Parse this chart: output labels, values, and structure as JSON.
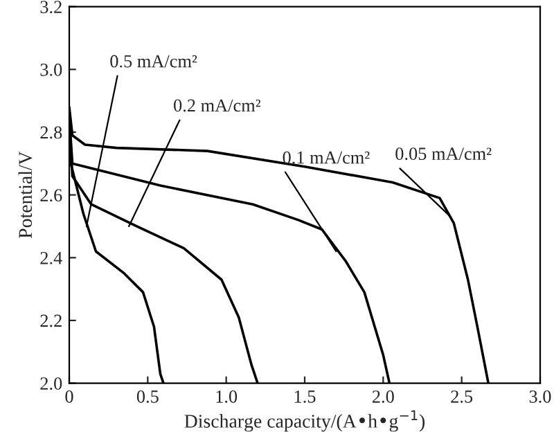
{
  "chart_data": {
    "type": "line",
    "xlabel": "Discharge capacity/(A•h•g$^{−1}$)",
    "ylabel": "Potential/V",
    "xlim": [
      0,
      3.0
    ],
    "ylim": [
      2.0,
      3.2
    ],
    "xticks": [
      {
        "value": 0,
        "label": "0"
      },
      0.5,
      {
        "value": 1,
        "label": "1.0"
      },
      1.5,
      {
        "value": 2,
        "label": "2.0"
      },
      2.5,
      {
        "value": 3,
        "label": "3.0"
      }
    ],
    "yticks": [
      {
        "value": 2,
        "label": "2.0"
      },
      2.2,
      2.4,
      2.6,
      2.8,
      {
        "value": 3,
        "label": "3.0"
      },
      3.2
    ],
    "grid": false,
    "legend": false,
    "line_style": "solid",
    "marker": "none",
    "series": [
      {
        "color": "#000000",
        "x": [
          0,
          0.02,
          0.1,
          0.3,
          0.88,
          1.5,
          2.06,
          2.36,
          2.45,
          2.54,
          2.6,
          2.67
        ],
        "values": [
          2.88,
          2.79,
          2.76,
          2.75,
          2.74,
          2.69,
          2.64,
          2.59,
          2.51,
          2.33,
          2.18,
          2.0
        ]
      },
      {
        "color": "#000000",
        "x": [
          0,
          0.02,
          0.58,
          1.17,
          1.46,
          1.61,
          1.76,
          1.88,
          2.0,
          2.04
        ],
        "values": [
          2.85,
          2.7,
          2.63,
          2.57,
          2.52,
          2.49,
          2.39,
          2.29,
          2.09,
          2.0
        ]
      },
      {
        "color": "#000000",
        "x": [
          0,
          0.02,
          0.14,
          0.43,
          0.73,
          0.97,
          1.08,
          1.16,
          1.2
        ],
        "values": [
          2.85,
          2.66,
          2.57,
          2.5,
          2.43,
          2.33,
          2.21,
          2.06,
          2.0
        ]
      },
      {
        "color": "#000000",
        "x": [
          0,
          0.01,
          0.09,
          0.17,
          0.35,
          0.47,
          0.54,
          0.58,
          0.6
        ],
        "values": [
          2.85,
          2.7,
          2.54,
          2.42,
          2.35,
          2.29,
          2.18,
          2.03,
          2.0
        ]
      }
    ],
    "annotations": [
      {
        "text": "0.5 mA/cm²",
        "x": 0.11,
        "y": 2.5
      },
      {
        "text": "0.2 mA/cm²",
        "x": 0.38,
        "y": 2.5
      },
      {
        "text": "0.1 mA/cm²",
        "x": 1.7,
        "y": 2.42
      },
      {
        "text": "0.05 mA/cm²",
        "x": 2.43,
        "y": 2.53
      }
    ]
  }
}
